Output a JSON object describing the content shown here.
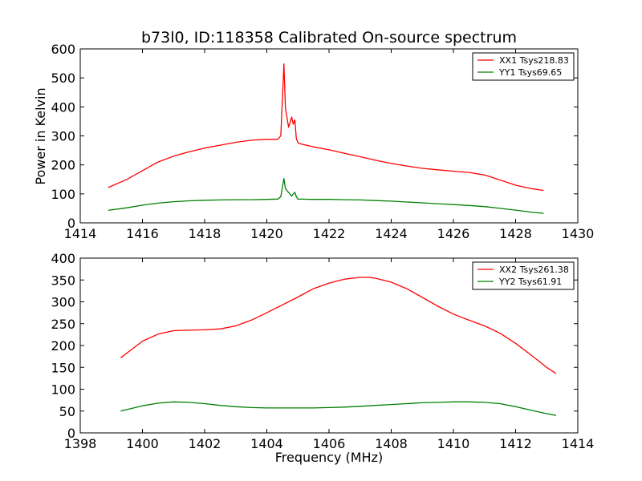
{
  "figure": {
    "title": "b73l0, ID:118358 Calibrated On-source spectrum",
    "xlabel": "Frequency (MHz)"
  },
  "chart_data": [
    {
      "type": "line",
      "title": "b73l0, ID:118358 Calibrated On-source spectrum",
      "xlabel": "",
      "ylabel": "Power in Kelvin",
      "xlim": [
        1414,
        1430
      ],
      "ylim": [
        0,
        600
      ],
      "xticks": [
        "1414",
        "1416",
        "1418",
        "1420",
        "1422",
        "1424",
        "1426",
        "1428",
        "1430"
      ],
      "yticks": [
        "0",
        "100",
        "200",
        "300",
        "400",
        "500",
        "600"
      ],
      "grid": false,
      "legend": "top-right",
      "series": [
        {
          "name": "XX1 Tsys218.83",
          "color": "#ff0000",
          "x": [
            1414.9,
            1415.5,
            1416.0,
            1416.5,
            1417.0,
            1417.5,
            1418.0,
            1418.5,
            1419.0,
            1419.5,
            1420.0,
            1420.35,
            1420.45,
            1420.55,
            1420.6,
            1420.7,
            1420.8,
            1420.85,
            1420.9,
            1420.95,
            1421.0,
            1421.1,
            1421.5,
            1422.0,
            1422.5,
            1423.0,
            1423.5,
            1424.0,
            1424.5,
            1425.0,
            1425.5,
            1426.0,
            1426.5,
            1427.0,
            1427.5,
            1428.0,
            1428.5,
            1428.9
          ],
          "y": [
            122,
            150,
            180,
            210,
            230,
            245,
            258,
            268,
            278,
            285,
            288,
            288,
            300,
            548,
            395,
            330,
            365,
            340,
            355,
            290,
            276,
            272,
            262,
            252,
            240,
            228,
            216,
            205,
            196,
            188,
            183,
            178,
            174,
            165,
            148,
            130,
            118,
            112
          ]
        },
        {
          "name": "YY1 Tsys69.65",
          "color": "#008000",
          "x": [
            1414.9,
            1415.5,
            1416.0,
            1416.5,
            1417.0,
            1417.5,
            1418.0,
            1418.5,
            1419.0,
            1419.5,
            1420.0,
            1420.35,
            1420.45,
            1420.55,
            1420.6,
            1420.7,
            1420.8,
            1420.85,
            1420.9,
            1420.95,
            1421.0,
            1421.5,
            1422.0,
            1422.5,
            1423.0,
            1423.5,
            1424.0,
            1424.5,
            1425.0,
            1425.5,
            1426.0,
            1426.5,
            1427.0,
            1427.5,
            1428.0,
            1428.5,
            1428.9
          ],
          "y": [
            43,
            52,
            61,
            68,
            73,
            76,
            78,
            79,
            80,
            80,
            81,
            82,
            90,
            153,
            118,
            105,
            92,
            100,
            105,
            90,
            82,
            81,
            81,
            80,
            79,
            77,
            75,
            72,
            69,
            66,
            63,
            60,
            56,
            50,
            44,
            37,
            33
          ]
        }
      ]
    },
    {
      "type": "line",
      "title": "",
      "xlabel": "Frequency (MHz)",
      "ylabel": "",
      "xlim": [
        1398,
        1414
      ],
      "ylim": [
        0,
        400
      ],
      "xticks": [
        "1398",
        "1400",
        "1402",
        "1404",
        "1406",
        "1408",
        "1410",
        "1412",
        "1414"
      ],
      "yticks": [
        "0",
        "50",
        "100",
        "150",
        "200",
        "250",
        "300",
        "350",
        "400"
      ],
      "grid": false,
      "legend": "top-right",
      "series": [
        {
          "name": "XX2 Tsys261.38",
          "color": "#ff0000",
          "x": [
            1399.3,
            1399.6,
            1400.0,
            1400.5,
            1401.0,
            1401.5,
            1402.0,
            1402.5,
            1403.0,
            1403.5,
            1404.0,
            1404.5,
            1405.0,
            1405.5,
            1406.0,
            1406.5,
            1407.0,
            1407.3,
            1407.5,
            1408.0,
            1408.5,
            1409.0,
            1409.5,
            1410.0,
            1410.5,
            1411.0,
            1411.5,
            1412.0,
            1412.5,
            1413.0,
            1413.3
          ],
          "y": [
            172,
            188,
            210,
            226,
            234,
            235,
            236,
            238,
            245,
            258,
            275,
            293,
            311,
            330,
            343,
            352,
            356,
            356,
            354,
            345,
            330,
            310,
            290,
            272,
            258,
            245,
            228,
            205,
            178,
            150,
            136
          ]
        },
        {
          "name": "YY2 Tsys61.91",
          "color": "#008000",
          "x": [
            1399.3,
            1400.0,
            1400.5,
            1401.0,
            1401.5,
            1402.0,
            1402.5,
            1403.0,
            1403.5,
            1404.0,
            1404.5,
            1405.0,
            1405.5,
            1406.0,
            1406.5,
            1407.0,
            1407.5,
            1408.0,
            1408.5,
            1409.0,
            1409.5,
            1410.0,
            1410.5,
            1411.0,
            1411.5,
            1412.0,
            1412.5,
            1413.0,
            1413.3
          ],
          "y": [
            50,
            62,
            68,
            71,
            70,
            67,
            63,
            60,
            58,
            57,
            57,
            57,
            57,
            58,
            59,
            61,
            63,
            65,
            67,
            69,
            70,
            71,
            71,
            70,
            67,
            60,
            52,
            44,
            40
          ]
        }
      ]
    }
  ]
}
